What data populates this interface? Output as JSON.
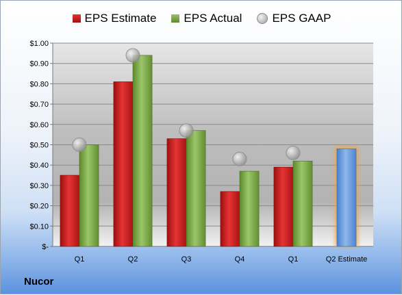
{
  "company": "Nucor",
  "chart_data": {
    "type": "bar",
    "categories": [
      "Q1",
      "Q2",
      "Q3",
      "Q4",
      "Q1",
      "Q2 Estimate"
    ],
    "series": [
      {
        "name": "EPS Estimate",
        "values": [
          0.35,
          0.81,
          0.53,
          0.27,
          0.39,
          null
        ],
        "color": "#c81e1e"
      },
      {
        "name": "EPS Actual",
        "values": [
          0.5,
          0.94,
          0.57,
          0.37,
          0.42,
          null
        ],
        "color": "#7aa34a"
      },
      {
        "name": "EPS GAAP",
        "values": [
          0.5,
          0.94,
          0.57,
          0.43,
          0.46,
          null
        ],
        "color": "#b0b0b0"
      }
    ],
    "forecast": {
      "category": "Q2 Estimate",
      "value": 0.48,
      "color": "#5b8fd6",
      "glow": "#f2a33a"
    },
    "yticks": [
      {
        "value": 0,
        "label": "$-"
      },
      {
        "value": 0.1,
        "label": "$0.10"
      },
      {
        "value": 0.2,
        "label": "$0.20"
      },
      {
        "value": 0.3,
        "label": "$0.30"
      },
      {
        "value": 0.4,
        "label": "$0.40"
      },
      {
        "value": 0.5,
        "label": "$0.50"
      },
      {
        "value": 0.6,
        "label": "$0.60"
      },
      {
        "value": 0.7,
        "label": "$0.70"
      },
      {
        "value": 0.8,
        "label": "$0.80"
      },
      {
        "value": 0.9,
        "label": "$0.90"
      },
      {
        "value": 1.0,
        "label": "$1.00"
      }
    ],
    "ylim": [
      0,
      1.0
    ],
    "grid": true,
    "legend": "top"
  }
}
